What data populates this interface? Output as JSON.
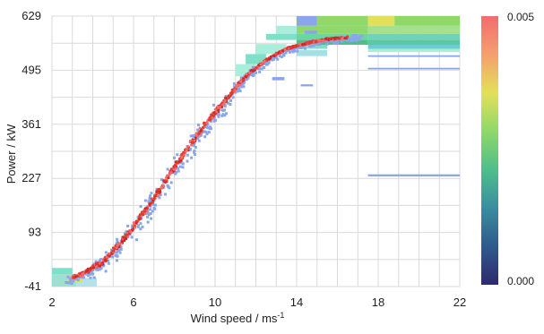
{
  "chart_data": {
    "type": "heatmap",
    "title": "",
    "xlabel": "Wind speed / ms",
    "xlabel_sup": "-1",
    "ylabel": "Power / kW",
    "xlim": [
      2,
      22
    ],
    "ylim": [
      -41,
      629
    ],
    "xticks": [
      "2",
      "6",
      "10",
      "14",
      "18",
      "22"
    ],
    "yticks": [
      "-41",
      "93",
      "227",
      "361",
      "495",
      "629"
    ],
    "grid": true,
    "colorbar": {
      "max_label": "0.005",
      "min_label": "0.000",
      "stops": [
        "#2e2a6e",
        "#2f5a8c",
        "#3b8da0",
        "#4fbe8a",
        "#8fd86a",
        "#e2e05a",
        "#f4a070",
        "#f06d6d"
      ]
    },
    "density_core_colors": [
      "#e53a2e",
      "#c92a2a",
      "#f06d6d"
    ],
    "scatter_color": "#8aa6e8",
    "curve": {
      "x": [
        2.5,
        3.5,
        4.5,
        5.5,
        6.5,
        7.5,
        8.5,
        9.5,
        10.5,
        11.5,
        12.5,
        13.5,
        14.5,
        15.5,
        16.5,
        17.0
      ],
      "y": [
        -25,
        -10,
        20,
        75,
        140,
        215,
        290,
        360,
        420,
        480,
        520,
        548,
        562,
        572,
        576,
        578
      ]
    },
    "cells": [
      {
        "x0": 2.0,
        "x1": 3.0,
        "y0": -10,
        "y1": 5,
        "color": "#7fe0c9"
      },
      {
        "x0": 2.0,
        "x1": 3.2,
        "y0": -41,
        "y1": -10,
        "color": "#9de0d0"
      },
      {
        "x0": 3.2,
        "x1": 4.2,
        "y0": -41,
        "y1": -20,
        "color": "#b3e2e8"
      },
      {
        "x0": 2.8,
        "x1": 3.5,
        "y0": -30,
        "y1": -15,
        "color": "#e2e05a"
      },
      {
        "x0": 14.0,
        "x1": 15.0,
        "y0": 605,
        "y1": 629,
        "color": "#8aa6e8"
      },
      {
        "x0": 15.0,
        "x1": 17.5,
        "y0": 605,
        "y1": 629,
        "color": "#8fd86a"
      },
      {
        "x0": 17.5,
        "x1": 18.8,
        "y0": 605,
        "y1": 629,
        "color": "#e2e05a"
      },
      {
        "x0": 18.8,
        "x1": 22.0,
        "y0": 605,
        "y1": 629,
        "color": "#8fd86a"
      },
      {
        "x0": 13.0,
        "x1": 14.0,
        "y0": 585,
        "y1": 605,
        "color": "#a9eedb"
      },
      {
        "x0": 14.0,
        "x1": 17.5,
        "y0": 585,
        "y1": 605,
        "color": "#8fd86a"
      },
      {
        "x0": 17.5,
        "x1": 22.0,
        "y0": 585,
        "y1": 605,
        "color": "#a6e08a"
      },
      {
        "x0": 12.5,
        "x1": 14.0,
        "y0": 570,
        "y1": 585,
        "color": "#7fe0c9"
      },
      {
        "x0": 14.0,
        "x1": 17.5,
        "y0": 570,
        "y1": 585,
        "color": "#6cd6a0"
      },
      {
        "x0": 17.5,
        "x1": 22.0,
        "y0": 570,
        "y1": 585,
        "color": "#6fd3b8"
      },
      {
        "x0": 14.0,
        "x1": 17.5,
        "y0": 558,
        "y1": 570,
        "color": "#4fbe8a"
      },
      {
        "x0": 17.5,
        "x1": 22.0,
        "y0": 558,
        "y1": 570,
        "color": "#5fc7a0"
      },
      {
        "x0": 14.0,
        "x1": 15.5,
        "y0": 548,
        "y1": 558,
        "color": "#7fe0c9"
      },
      {
        "x0": 17.5,
        "x1": 22.0,
        "y0": 548,
        "y1": 558,
        "color": "#6dcbd6"
      },
      {
        "x0": 17.5,
        "x1": 22.0,
        "y0": 540,
        "y1": 548,
        "color": "#a9eedb"
      },
      {
        "x0": 14.0,
        "x1": 15.5,
        "y0": 530,
        "y1": 545,
        "color": "#a7dfe6"
      },
      {
        "x0": 17.5,
        "x1": 22.0,
        "y0": 528,
        "y1": 532,
        "color": "#8aa6e8"
      },
      {
        "x0": 17.5,
        "x1": 22.0,
        "y0": 497,
        "y1": 501,
        "color": "#8aa6e8"
      },
      {
        "x0": 17.5,
        "x1": 22.0,
        "y0": 232,
        "y1": 237,
        "color": "#8aa6e8"
      },
      {
        "x0": 12.0,
        "x1": 13.5,
        "y0": 535,
        "y1": 560,
        "color": "#a9eedb"
      },
      {
        "x0": 11.5,
        "x1": 12.5,
        "y0": 510,
        "y1": 535,
        "color": "#7fe0c9"
      },
      {
        "x0": 11.0,
        "x1": 12.0,
        "y0": 480,
        "y1": 510,
        "color": "#a9eedb"
      },
      {
        "x0": 12.8,
        "x1": 13.4,
        "y0": 470,
        "y1": 478,
        "color": "#8aa6e8"
      },
      {
        "x0": 14.2,
        "x1": 14.8,
        "y0": 455,
        "y1": 460,
        "color": "#8aa6e8"
      },
      {
        "x0": 14.4,
        "x1": 15.0,
        "y0": 585,
        "y1": 593,
        "color": "#8aa6e8"
      }
    ]
  }
}
